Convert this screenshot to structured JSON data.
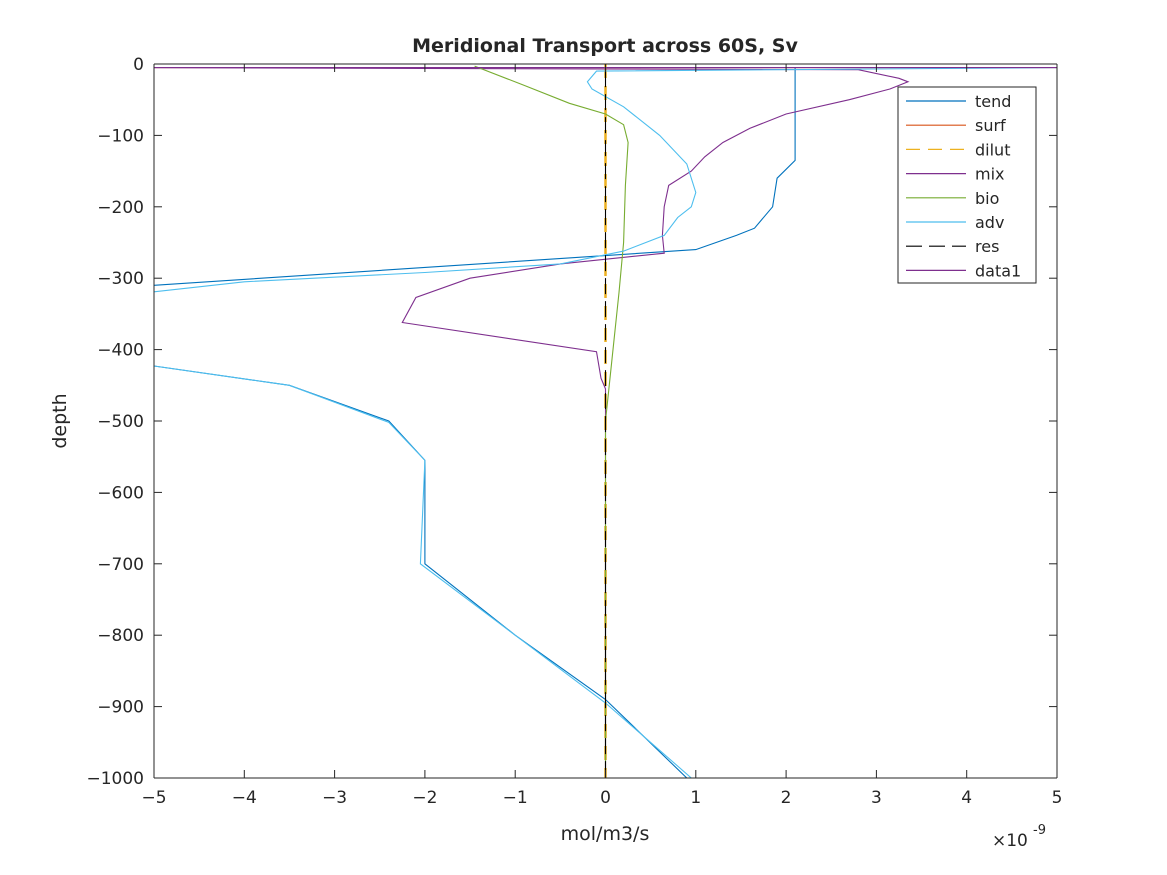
{
  "chart_data": {
    "type": "line",
    "title": "Meridional Transport across 60S, Sv",
    "xlabel": "mol/m3/s",
    "ylabel": "depth",
    "x_exponent_label": "×10",
    "x_exponent_power": "-9",
    "xlim": [
      -5,
      5
    ],
    "ylim": [
      -1000,
      0
    ],
    "x_scale": 1e-09,
    "x_ticks": [
      -5,
      -4,
      -3,
      -2,
      -1,
      0,
      1,
      2,
      3,
      4,
      5
    ],
    "x_tick_labels": [
      "−5",
      "−4",
      "−3",
      "−2",
      "−1",
      "0",
      "1",
      "2",
      "3",
      "4",
      "5"
    ],
    "y_ticks": [
      0,
      -100,
      -200,
      -300,
      -400,
      -500,
      -600,
      -700,
      -800,
      -900,
      -1000
    ],
    "y_tick_labels": [
      "0",
      "−100",
      "−200",
      "−300",
      "−400",
      "−500",
      "−600",
      "−700",
      "−800",
      "−900",
      "−1000"
    ],
    "grid": false,
    "legend_position": "top-right",
    "series": [
      {
        "name": "tend",
        "color": "#0072BD",
        "dash": "solid",
        "points": [
          [
            2.1,
            -5
          ],
          [
            2.1,
            -135
          ],
          [
            1.9,
            -160
          ],
          [
            1.85,
            -200
          ],
          [
            1.65,
            -230
          ],
          [
            1.45,
            -240
          ],
          [
            1.0,
            -260
          ],
          [
            -5,
            -310
          ],
          [
            -5.5,
            -312
          ],
          [
            -5.5,
            -420
          ],
          [
            -5,
            -423
          ],
          [
            -3.5,
            -450
          ],
          [
            -2.4,
            -500
          ],
          [
            -2.0,
            -555
          ],
          [
            -2.0,
            -700
          ],
          [
            -1,
            -800
          ],
          [
            0,
            -890
          ],
          [
            0.9,
            -1000
          ]
        ]
      },
      {
        "name": "surf",
        "color": "#D95319",
        "dash": "solid",
        "points": [
          [
            -5,
            -5
          ],
          [
            5,
            -5
          ]
        ]
      },
      {
        "name": "dilut",
        "color": "#EDB120",
        "dash": "dashed",
        "points": [
          [
            0,
            0
          ],
          [
            0,
            -1000
          ]
        ]
      },
      {
        "name": "mix",
        "color": "#7E2F8E",
        "dash": "solid",
        "points": [
          [
            -5,
            -5
          ],
          [
            2.8,
            -8
          ],
          [
            3.25,
            -20
          ],
          [
            3.35,
            -25
          ],
          [
            3.15,
            -35
          ],
          [
            2.7,
            -50
          ],
          [
            2.0,
            -70
          ],
          [
            1.6,
            -90
          ],
          [
            1.3,
            -110
          ],
          [
            1.1,
            -130
          ],
          [
            0.95,
            -150
          ],
          [
            0.7,
            -170
          ],
          [
            0.65,
            -200
          ],
          [
            0.63,
            -240
          ],
          [
            0.65,
            -265
          ],
          [
            -0.5,
            -280
          ],
          [
            -1.5,
            -300
          ],
          [
            -2.1,
            -327
          ],
          [
            -2.25,
            -362
          ],
          [
            -0.1,
            -403
          ],
          [
            -0.05,
            -440
          ],
          [
            0,
            -455
          ],
          [
            0,
            -1000
          ]
        ]
      },
      {
        "name": "bio",
        "color": "#77AC30",
        "dash": "solid",
        "points": [
          [
            -1.45,
            -3
          ],
          [
            -0.9,
            -30
          ],
          [
            -0.4,
            -55
          ],
          [
            0,
            -70
          ],
          [
            0.2,
            -85
          ],
          [
            0.25,
            -110
          ],
          [
            0.22,
            -170
          ],
          [
            0.2,
            -250
          ],
          [
            0.15,
            -320
          ],
          [
            0.1,
            -380
          ],
          [
            0.05,
            -440
          ],
          [
            0,
            -500
          ],
          [
            0,
            -1000
          ]
        ]
      },
      {
        "name": "adv",
        "color": "#4DBEEE",
        "dash": "solid",
        "points": [
          [
            5,
            -5
          ],
          [
            -0.1,
            -10
          ],
          [
            -0.2,
            -25
          ],
          [
            -0.15,
            -35
          ],
          [
            0.2,
            -60
          ],
          [
            0.6,
            -100
          ],
          [
            0.9,
            -140
          ],
          [
            1.0,
            -180
          ],
          [
            0.95,
            -200
          ],
          [
            0.8,
            -215
          ],
          [
            0.65,
            -240
          ],
          [
            0.2,
            -262
          ],
          [
            -0.5,
            -280
          ],
          [
            -2,
            -292
          ],
          [
            -4,
            -305
          ],
          [
            -5,
            -319
          ],
          [
            -5.5,
            -320
          ],
          [
            -5.5,
            -420
          ],
          [
            -5,
            -423
          ],
          [
            -3.5,
            -450
          ],
          [
            -2.4,
            -502
          ],
          [
            -2.0,
            -555
          ],
          [
            -2.05,
            -700
          ],
          [
            -1,
            -800
          ],
          [
            0,
            -895
          ],
          [
            0.95,
            -1000
          ]
        ]
      },
      {
        "name": "res",
        "color": "#000000",
        "dash": "longdash",
        "points": [
          [
            0,
            -10
          ],
          [
            0,
            -1000
          ]
        ]
      },
      {
        "name": "data1",
        "color": "#7E2F8E",
        "dash": "solid",
        "points": [
          [
            -5,
            -5
          ],
          [
            5,
            -5
          ]
        ]
      }
    ]
  }
}
